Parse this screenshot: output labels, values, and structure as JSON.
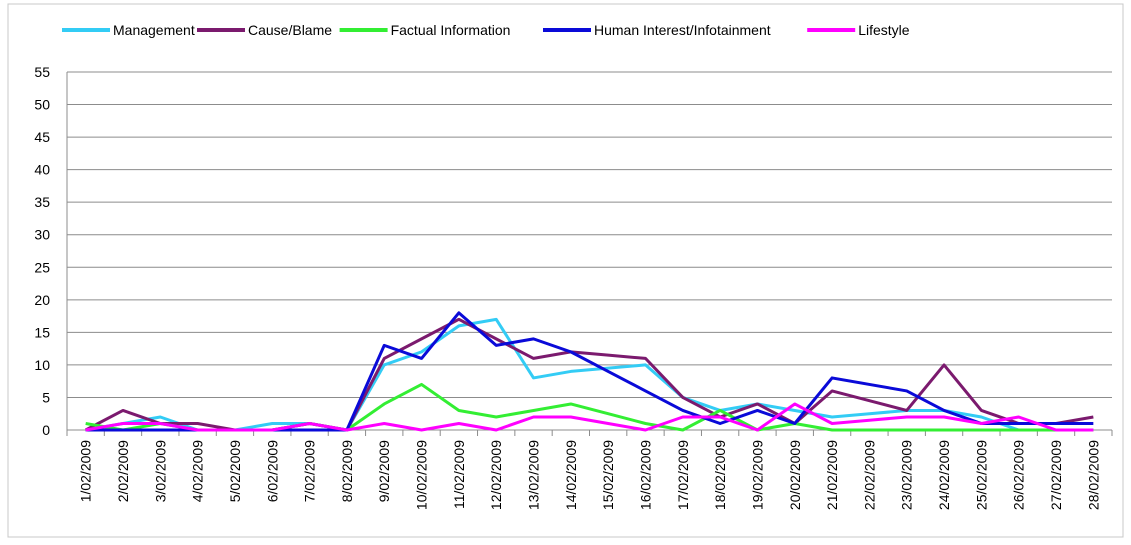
{
  "chart_data": {
    "type": "line",
    "categories": [
      "1/02/2009",
      "2/02/2009",
      "3/02/2009",
      "4/02/2009",
      "5/02/2009",
      "6/02/2009",
      "7/02/2009",
      "8/02/2009",
      "9/02/2009",
      "10/02/2009",
      "11/02/2009",
      "12/02/2009",
      "13/02/2009",
      "14/02/2009",
      "15/02/2009",
      "16/02/2009",
      "17/02/2009",
      "18/02/2009",
      "19/02/2009",
      "20/02/2009",
      "21/02/2009",
      "22/02/2009",
      "23/02/2009",
      "24/02/2009",
      "25/02/2009",
      "26/02/2009",
      "27/02/2009",
      "28/02/2009"
    ],
    "series": [
      {
        "name": "Management",
        "color": "#33ccf5",
        "values": [
          0,
          1,
          2,
          0,
          0,
          1,
          1,
          0,
          10,
          12,
          16,
          17,
          8,
          9,
          9.5,
          10,
          5,
          3,
          4,
          3,
          2,
          2.5,
          3,
          3,
          2,
          0,
          0,
          0
        ]
      },
      {
        "name": "Cause/Blame",
        "color": "#7b1a6e",
        "values": [
          0,
          3,
          1,
          1,
          0,
          0,
          1,
          0,
          11,
          14,
          17,
          14,
          11,
          12,
          11.5,
          11,
          5,
          2,
          4,
          1,
          6,
          4.5,
          3,
          10,
          3,
          1,
          1,
          2
        ]
      },
      {
        "name": "Factual Information",
        "color": "#33ee33",
        "values": [
          1,
          0,
          1,
          0,
          0,
          0,
          1,
          0,
          4,
          7,
          3,
          2,
          3,
          4,
          2.5,
          1,
          0,
          3,
          0,
          1,
          0,
          0,
          0,
          0,
          0,
          0,
          0,
          0
        ]
      },
      {
        "name": "Human Interest/Infotainment",
        "color": "#0a0ad8",
        "values": [
          0,
          0,
          0,
          0,
          0,
          0,
          0,
          0,
          13,
          11,
          18,
          13,
          14,
          12,
          9,
          6,
          3,
          1,
          3,
          1,
          8,
          7,
          6,
          3,
          1,
          1,
          1,
          1
        ]
      },
      {
        "name": "Lifestyle",
        "color": "#ff00ff",
        "values": [
          0,
          1,
          1,
          0,
          0,
          0,
          1,
          0,
          1,
          0,
          1,
          0,
          2,
          2,
          1,
          0,
          2,
          2,
          0,
          4,
          1,
          1.5,
          2,
          2,
          1,
          2,
          0,
          0
        ]
      }
    ],
    "ylim": [
      0,
      55
    ],
    "yticks": [
      0,
      5,
      10,
      15,
      20,
      25,
      30,
      35,
      40,
      45,
      50,
      55
    ],
    "grid": true,
    "legend": "top"
  }
}
